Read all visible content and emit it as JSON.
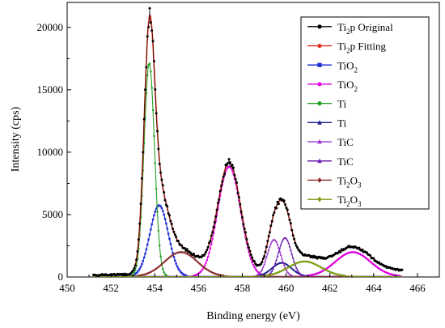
{
  "chart_data": {
    "type": "line",
    "xlabel": "Binding energy (eV)",
    "ylabel": "Intensity (cps)",
    "xlim": [
      450,
      467
    ],
    "ylim": [
      0,
      22000
    ],
    "x_ticks": [
      450,
      452,
      454,
      456,
      458,
      460,
      462,
      464,
      466
    ],
    "y_ticks": [
      0,
      5000,
      10000,
      15000,
      20000
    ],
    "x_range": [
      451.2,
      465.3
    ],
    "grid": false,
    "legend_position": "top-right",
    "components": [
      {
        "color": "#1f2fd6",
        "marker": "square",
        "peaks": [
          {
            "center": 454.2,
            "height": 5700,
            "width": 0.42
          }
        ]
      },
      {
        "color": "#e000e0",
        "marker": "circle",
        "peaks": [
          {
            "center": 457.4,
            "height": 8800,
            "width": 0.52
          },
          {
            "center": 463.05,
            "height": 1950,
            "width": 0.8
          }
        ]
      },
      {
        "color": "#22a022",
        "marker": "circle",
        "peaks": [
          {
            "center": 453.75,
            "height": 17100,
            "width": 0.24
          }
        ]
      },
      {
        "color": "#1a1a8c",
        "marker": "triangle",
        "peaks": [
          {
            "center": 459.8,
            "height": 1100,
            "width": 0.45
          }
        ]
      },
      {
        "color": "#9a33cc",
        "marker": "triangle",
        "peaks": [
          {
            "center": 459.45,
            "height": 2950,
            "width": 0.3
          }
        ]
      },
      {
        "color": "#6a1fb0",
        "marker": "triangle",
        "peaks": [
          {
            "center": 459.95,
            "height": 3100,
            "width": 0.3
          }
        ]
      },
      {
        "color": "#8b2a2a",
        "marker": "diamond",
        "peaks": [
          {
            "center": 455.2,
            "height": 1950,
            "width": 0.75
          }
        ]
      },
      {
        "color": "#7a9a10",
        "marker": "diamond",
        "peaks": [
          {
            "center": 460.85,
            "height": 1200,
            "width": 0.75
          }
        ]
      }
    ],
    "series": [
      {
        "name": "Ti",
        "sub": "2",
        "tail": "p Original",
        "color": "#000000",
        "marker": "circle",
        "kind": "original"
      },
      {
        "name": "Ti",
        "sub": "2",
        "tail": "p Fitting",
        "color": "#e03020",
        "marker": "circle",
        "kind": "fitting"
      },
      {
        "name": "TiO",
        "sub": "2",
        "tail": "",
        "color": "#1f2fd6",
        "marker": "square",
        "kind": "component"
      },
      {
        "name": "TiO",
        "sub": "2",
        "tail": "",
        "color": "#e000e0",
        "marker": "circle",
        "kind": "component"
      },
      {
        "name": "Ti",
        "sub": "",
        "tail": "",
        "color": "#22a022",
        "marker": "circle",
        "kind": "component"
      },
      {
        "name": "Ti",
        "sub": "",
        "tail": "",
        "color": "#1a1a8c",
        "marker": "triangle",
        "kind": "component"
      },
      {
        "name": "TiC",
        "sub": "",
        "tail": "",
        "color": "#9a33cc",
        "marker": "triangle",
        "kind": "component"
      },
      {
        "name": "TiC",
        "sub": "",
        "tail": "",
        "color": "#6a1fb0",
        "marker": "triangle",
        "kind": "component"
      },
      {
        "name": "Ti",
        "sub": "2",
        "tail": "O",
        "tail_sub": "3",
        "color": "#8b2a2a",
        "marker": "diamond",
        "kind": "component"
      },
      {
        "name": "Ti",
        "sub": "2",
        "tail": "O",
        "tail_sub": "3",
        "color": "#7a9a10",
        "marker": "diamond",
        "kind": "component"
      }
    ]
  }
}
